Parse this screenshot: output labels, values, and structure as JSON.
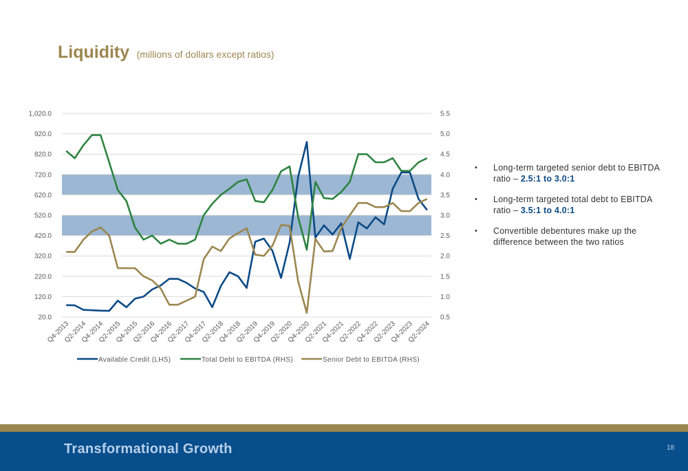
{
  "slide": {
    "title": "Liquidity",
    "subtitle": "(millions of dollars except ratios)",
    "bullets": [
      {
        "text": "Long-term targeted senior debt to EBITDA ratio – ",
        "highlight": "2.5:1 to 3.0:1"
      },
      {
        "text": "Long-term targeted total debt to EBITDA ratio – ",
        "highlight": "3.5:1 to 4.0:1"
      },
      {
        "text": "Convertible debentures make up the difference between the two ratios",
        "highlight": ""
      }
    ],
    "bullet_glyph": "•"
  },
  "footer": {
    "title": "Transformational Growth",
    "page_number": "18"
  },
  "colors": {
    "title": "#9c8650",
    "footer_bg": "#084e8c",
    "gold_band": "#9c8650",
    "highlight_text": "#0b4a86",
    "target_band": "#9bb7d3"
  },
  "chart_data": {
    "type": "line",
    "x": [
      "Q4-2013",
      "Q1-2014",
      "Q2-2014",
      "Q3-2014",
      "Q4-2014",
      "Q1-2015",
      "Q2-2015",
      "Q3-2015",
      "Q4-2015",
      "Q1-2016",
      "Q2-2016",
      "Q3-2016",
      "Q4-2016",
      "Q1-2017",
      "Q2-2017",
      "Q3-2017",
      "Q4-2017",
      "Q1-2018",
      "Q2-2018",
      "Q3-2018",
      "Q4-2018",
      "Q1-2019",
      "Q2-2019",
      "Q3-2019",
      "Q4-2019",
      "Q1-2020",
      "Q2-2020",
      "Q3-2020",
      "Q4-2020",
      "Q1-2021",
      "Q2-2021",
      "Q3-2021",
      "Q4-2021",
      "Q1-2022",
      "Q2-2022",
      "Q3-2022",
      "Q4-2022",
      "Q1-2023",
      "Q2-2023",
      "Q3-2023",
      "Q4-2023",
      "Q1-2024",
      "Q2-2024"
    ],
    "x_tick_labels": [
      "Q4-2013",
      "Q2-2014",
      "Q4-2014",
      "Q2-2015",
      "Q4-2015",
      "Q2-2016",
      "Q4-2016",
      "Q2-2017",
      "Q4-2017",
      "Q2-2018",
      "Q4-2018",
      "Q2-2019",
      "Q4-2019",
      "Q2-2020",
      "Q4-2020",
      "Q2-2021",
      "Q4-2021",
      "Q2-2022",
      "Q4-2022",
      "Q2-2023",
      "Q4-2023",
      "Q2-2024"
    ],
    "y_left_ticks": [
      "1,020.0",
      "920.0",
      "820.0",
      "720.0",
      "620.0",
      "520.0",
      "420.0",
      "320.0",
      "220.0",
      "120.0",
      "20.0"
    ],
    "y_right_ticks": [
      "5.5",
      "5.0",
      "4.5",
      "4.0",
      "3.5",
      "3.0",
      "2.5",
      "2.0",
      "1.5",
      "1.0",
      "0.5"
    ],
    "y_left_range": [
      20,
      1020
    ],
    "y_right_range": [
      0.5,
      5.5
    ],
    "target_bands_rhs": [
      [
        2.5,
        3.0
      ],
      [
        3.5,
        4.0
      ]
    ],
    "grid": true,
    "legend_position": "bottom",
    "series": [
      {
        "name": "Available Credit (LHS)",
        "axis": "left",
        "color": "#0b4a86",
        "values": [
          78,
          77,
          55,
          53,
          51,
          50,
          100,
          68,
          110,
          120,
          155,
          175,
          208,
          207,
          188,
          160,
          143,
          68,
          172,
          240,
          220,
          163,
          390,
          405,
          345,
          212,
          385,
          710,
          880,
          410,
          470,
          425,
          480,
          305,
          485,
          455,
          510,
          475,
          650,
          730,
          730,
          600,
          545
        ]
      },
      {
        "name": "Total Debt to EBITDA (RHS)",
        "axis": "right",
        "color": "#2e8340",
        "values": [
          4.58,
          4.4,
          4.72,
          4.97,
          4.97,
          4.3,
          3.62,
          3.35,
          2.7,
          2.4,
          2.5,
          2.3,
          2.4,
          2.3,
          2.3,
          2.4,
          3.0,
          3.28,
          3.5,
          3.65,
          3.82,
          3.88,
          3.35,
          3.32,
          3.62,
          4.08,
          4.2,
          2.95,
          2.15,
          3.82,
          3.42,
          3.4,
          3.57,
          3.82,
          4.5,
          4.5,
          4.3,
          4.3,
          4.4,
          4.09,
          4.09,
          4.3,
          4.4
        ]
      },
      {
        "name": "Senior Debt to EBITDA (RHS)",
        "axis": "right",
        "color": "#9c8650",
        "values": [
          2.1,
          2.1,
          2.4,
          2.6,
          2.7,
          2.5,
          1.7,
          1.7,
          1.7,
          1.5,
          1.4,
          1.2,
          0.8,
          0.8,
          0.9,
          1.0,
          1.92,
          2.23,
          2.12,
          2.43,
          2.56,
          2.68,
          2.03,
          2.0,
          2.25,
          2.76,
          2.74,
          1.37,
          0.6,
          2.42,
          2.11,
          2.12,
          2.68,
          3.0,
          3.3,
          3.3,
          3.2,
          3.2,
          3.3,
          3.1,
          3.1,
          3.3,
          3.4
        ]
      }
    ]
  }
}
